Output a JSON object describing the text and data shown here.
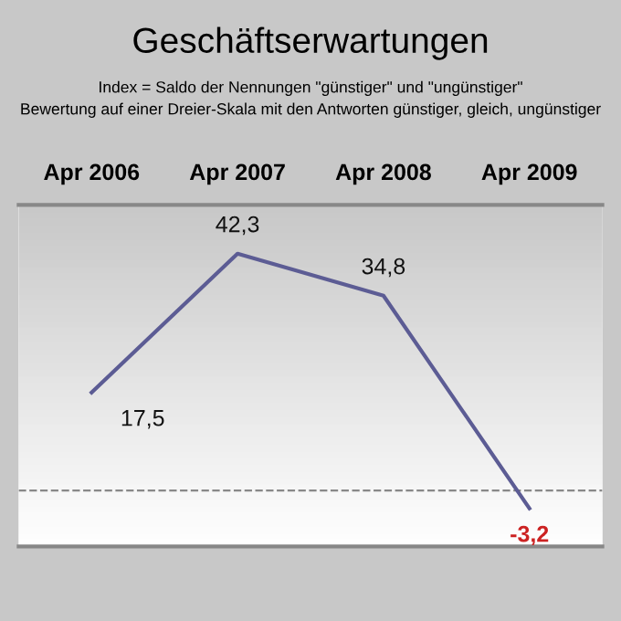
{
  "chart_data": {
    "type": "line",
    "title": "Geschäftserwartungen",
    "subtitle": "Index = Saldo der Nennungen \"günstiger\" und \"ungünstiger\"\nBewertung auf einer Dreier-Skala mit den Antworten günstiger, gleich, ungünstiger",
    "categories": [
      "Apr 2006",
      "Apr 2007",
      "Apr 2008",
      "Apr 2009"
    ],
    "series": [
      {
        "color": "#5c5c94",
        "values": [
          17.5,
          42.3,
          34.8,
          -3.2
        ],
        "value_labels": [
          "17,5",
          "42,3",
          "34,8",
          "-3,2"
        ]
      }
    ],
    "ylim": [
      -10,
      51
    ],
    "ref_lines": [
      {
        "axis": "y",
        "value": 0,
        "color": "#888888",
        "line_style": "dashed"
      }
    ],
    "marker": "none",
    "line_style": "solid",
    "grid": false,
    "legend": false
  }
}
